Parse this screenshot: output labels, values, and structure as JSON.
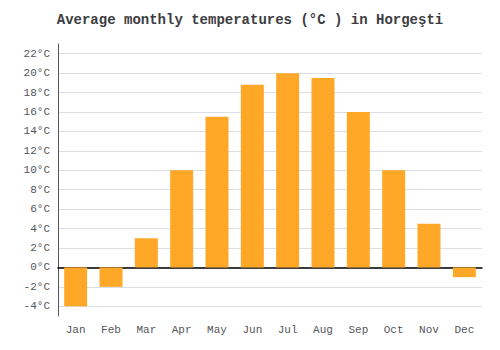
{
  "chart_data": {
    "type": "bar",
    "title": "Average monthly temperatures (°C ) in Horgeşti",
    "categories": [
      "Jan",
      "Feb",
      "Mar",
      "Apr",
      "May",
      "Jun",
      "Jul",
      "Aug",
      "Sep",
      "Oct",
      "Nov",
      "Dec"
    ],
    "values": [
      -4.0,
      -2.0,
      3.0,
      10.0,
      15.5,
      18.8,
      20.0,
      19.5,
      16.0,
      10.0,
      4.5,
      -1.0
    ],
    "color": "#FFA726",
    "ylim": [
      -5,
      23
    ],
    "yticks": [
      {
        "value": -4,
        "label": "-4°C"
      },
      {
        "value": -2,
        "label": "-2°C"
      },
      {
        "value": 0,
        "label": "0°C"
      },
      {
        "value": 2,
        "label": "2°C"
      },
      {
        "value": 4,
        "label": "4°C"
      },
      {
        "value": 6,
        "label": "6°C"
      },
      {
        "value": 8,
        "label": "8°C"
      },
      {
        "value": 10,
        "label": "10°C"
      },
      {
        "value": 12,
        "label": "12°C"
      },
      {
        "value": 14,
        "label": "14°C"
      },
      {
        "value": 16,
        "label": "16°C"
      },
      {
        "value": 18,
        "label": "18°C"
      },
      {
        "value": 20,
        "label": "20°C"
      },
      {
        "value": 22,
        "label": "22°C"
      }
    ],
    "grid": true
  }
}
